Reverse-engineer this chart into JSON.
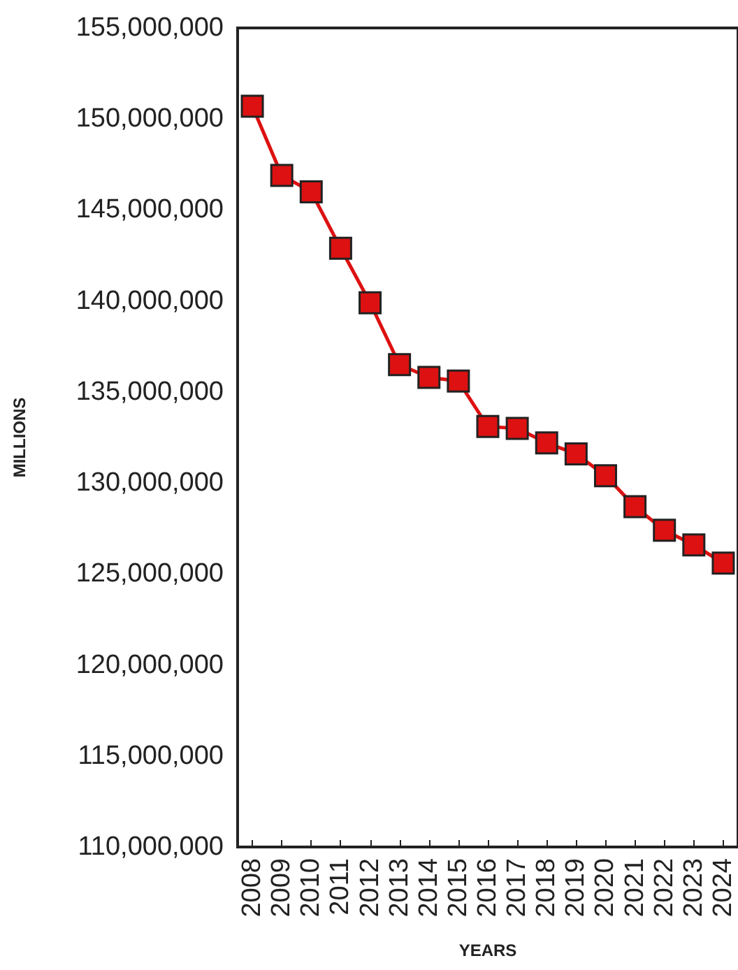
{
  "chart_data": {
    "type": "line",
    "xlabel": "YEARS",
    "ylabel": "MILLIONS",
    "categories": [
      "2008",
      "2009",
      "2010",
      "2011",
      "2012",
      "2013",
      "2014",
      "2015",
      "2016",
      "2017",
      "2018",
      "2019",
      "2020",
      "2021",
      "2022",
      "2023",
      "2024"
    ],
    "series": [
      {
        "color": "#dd1111",
        "values": [
          150700000,
          146900000,
          146000000,
          142900000,
          139900000,
          136500000,
          135800000,
          135600000,
          133100000,
          133000000,
          132200000,
          131600000,
          130400000,
          128700000,
          127400000,
          126600000,
          125600000
        ]
      }
    ],
    "ylim": [
      110000000,
      155000000
    ],
    "yticks": [
      {
        "value": 110000000,
        "label": "110,000,000"
      },
      {
        "value": 115000000,
        "label": "115,000,000"
      },
      {
        "value": 120000000,
        "label": "120,000,000"
      },
      {
        "value": 125000000,
        "label": "125,000,000"
      },
      {
        "value": 130000000,
        "label": "130,000,000"
      },
      {
        "value": 135000000,
        "label": "135,000,000"
      },
      {
        "value": 140000000,
        "label": "140,000,000"
      },
      {
        "value": 145000000,
        "label": "145,000,000"
      },
      {
        "value": 150000000,
        "label": "150,000,000"
      },
      {
        "value": 155000000,
        "label": "155,000,000"
      }
    ],
    "grid": false,
    "marker": "square",
    "line_style": "solid"
  }
}
